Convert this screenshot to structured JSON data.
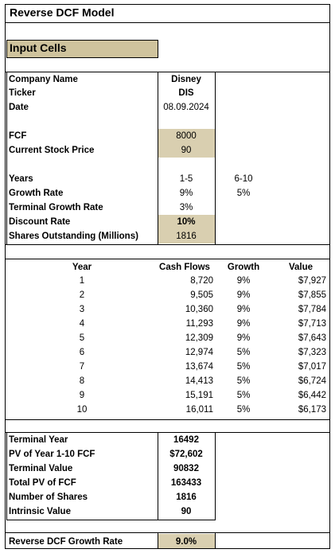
{
  "title": "Reverse DCF Model",
  "input_header": "Input Cells",
  "inputs": [
    {
      "label": "Company Name",
      "value": "Disney"
    },
    {
      "label": "Ticker",
      "value": "DIS"
    },
    {
      "label": "Date",
      "value": "08.09.2024"
    },
    {
      "label": "FCF",
      "value": 8000
    },
    {
      "label": "Current Stock Price",
      "value": 90
    },
    {
      "label": "Years",
      "values": [
        "1-5",
        "6-10"
      ]
    },
    {
      "label": "Growth Rate",
      "values": [
        "9%",
        "5%"
      ]
    },
    {
      "label": "Terminal Growth Rate",
      "value": "3%"
    },
    {
      "label": "Discount Rate",
      "value": "10%"
    },
    {
      "label": "Shares Outstanding (Millions)",
      "value": 1816
    }
  ],
  "table": {
    "columns": [
      "Year",
      "Cash Flows",
      "Growth",
      "Value"
    ],
    "rows": [
      [
        1,
        "8,720",
        "9%",
        "$7,927"
      ],
      [
        2,
        "9,505",
        "9%",
        "$7,855"
      ],
      [
        3,
        "10,360",
        "9%",
        "$7,784"
      ],
      [
        4,
        "11,293",
        "9%",
        "$7,713"
      ],
      [
        5,
        "12,309",
        "9%",
        "$7,643"
      ],
      [
        6,
        "12,974",
        "5%",
        "$7,323"
      ],
      [
        7,
        "13,674",
        "5%",
        "$7,017"
      ],
      [
        8,
        "14,413",
        "5%",
        "$6,724"
      ],
      [
        9,
        "15,191",
        "5%",
        "$6,442"
      ],
      [
        10,
        "16,011",
        "5%",
        "$6,173"
      ]
    ]
  },
  "summary": [
    {
      "label": "Terminal Year",
      "value": 16492
    },
    {
      "label": "PV of Year 1-10 FCF",
      "value": "$72,602"
    },
    {
      "label": "Terminal Value",
      "value": 90832
    },
    {
      "label": "Total PV of FCF",
      "value": 163433
    },
    {
      "label": "Number of Shares",
      "value": 1816
    },
    {
      "label": "Intrinsic Value",
      "value": 90
    }
  ],
  "result": {
    "label": "Reverse DCF Growth Rate",
    "value": "9.0%"
  }
}
